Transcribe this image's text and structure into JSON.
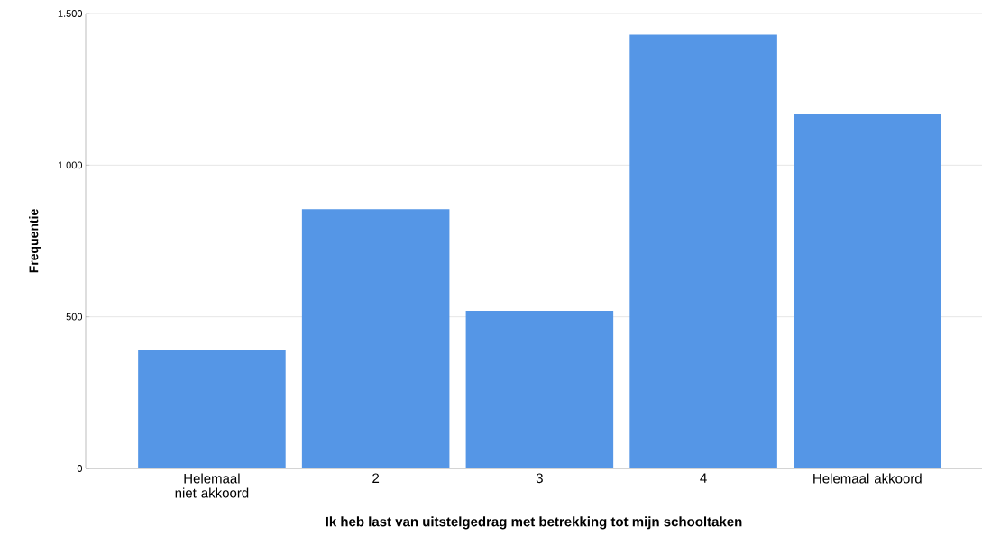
{
  "chart_data": {
    "type": "bar",
    "xlabel": "Ik heb last van uitstelgedrag met betrekking tot mijn schooltaken",
    "ylabel": "Frequentie",
    "categories": [
      "Helemaal niet akkoord",
      "2",
      "3",
      "4",
      "Helemaal akkoord"
    ],
    "values": [
      390,
      855,
      520,
      1430,
      1170
    ],
    "color": "#5596e6",
    "ylim": [
      0,
      1500
    ],
    "yticks": [
      {
        "value": 0,
        "label": "0"
      },
      {
        "value": 500,
        "label": "500"
      },
      {
        "value": 1000,
        "label": "1.000"
      },
      {
        "value": 1500,
        "label": "1.500"
      }
    ],
    "grid": "y"
  }
}
